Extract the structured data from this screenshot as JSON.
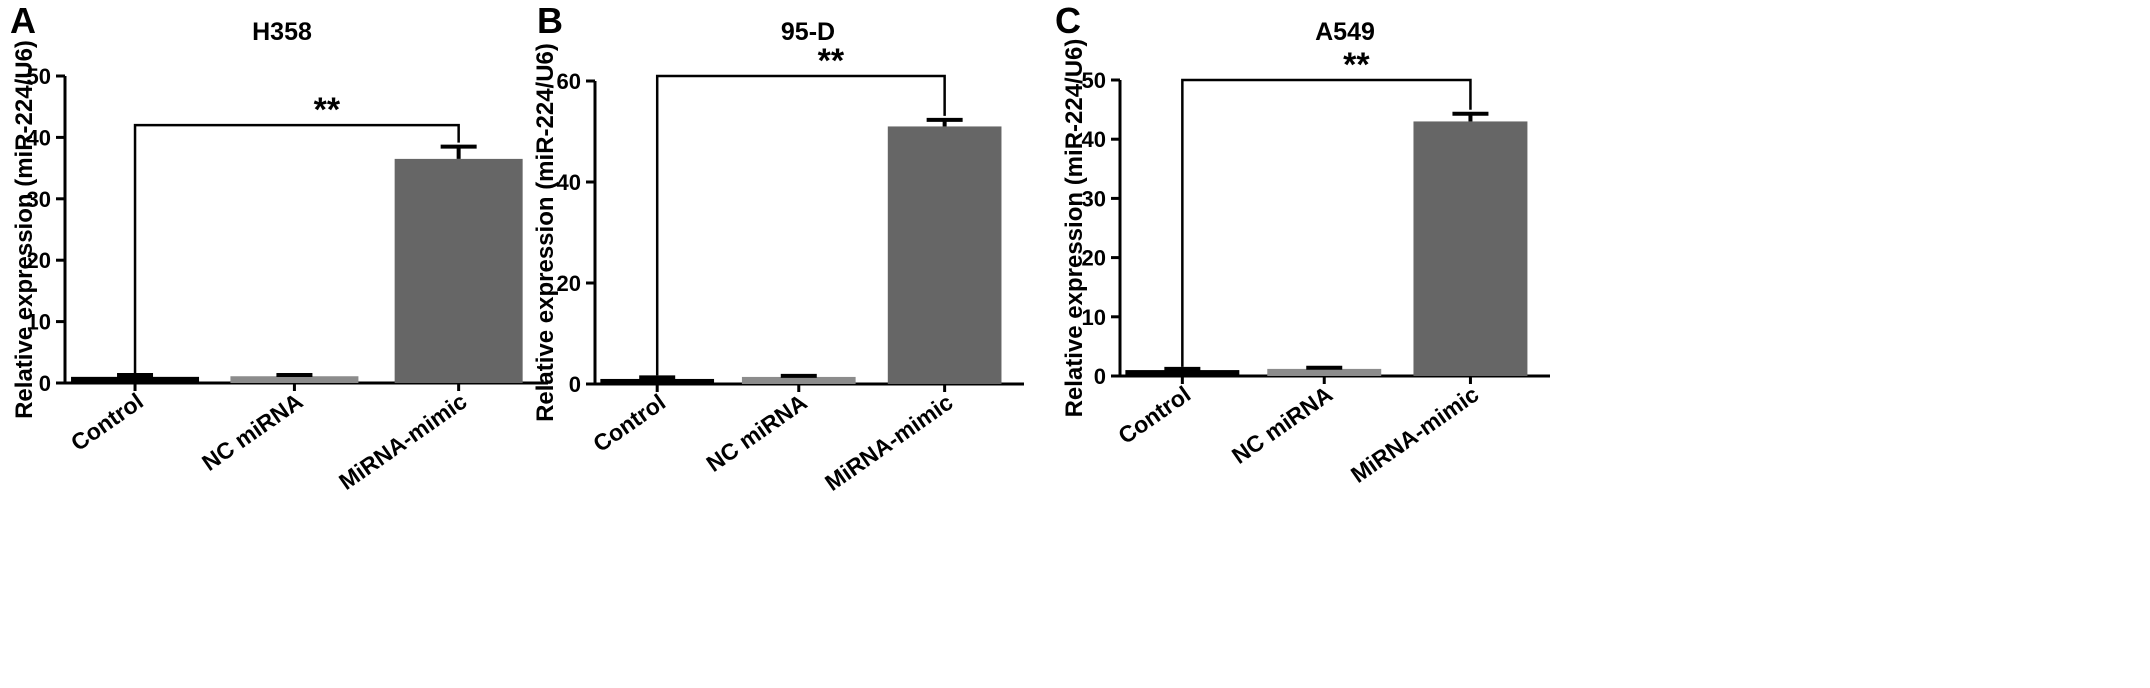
{
  "chart_data": [
    {
      "type": "bar",
      "panel": "A",
      "title": "H358",
      "ylabel": "Relative expression (miR-224/U6)",
      "xlabel": "",
      "categories": [
        "Control",
        "NC miRNA",
        "MiRNA-mimic"
      ],
      "values": [
        1.0,
        1.1,
        36.5
      ],
      "errors": [
        0.3,
        0.2,
        2.0
      ],
      "bar_colors": [
        "#000000",
        "#8c8c8c",
        "#666666"
      ],
      "ylim": [
        0,
        50
      ],
      "yticks": [
        0,
        10,
        20,
        30,
        40,
        50
      ],
      "significance": {
        "from": 0,
        "to": 2,
        "label": "**",
        "y": 42
      },
      "grid": false
    },
    {
      "type": "bar",
      "panel": "B",
      "title": "95-D",
      "ylabel": "Relative expression (miR-224/U6)",
      "xlabel": "",
      "categories": [
        "Control",
        "NC miRNA",
        "MiRNA-mimic"
      ],
      "values": [
        1.0,
        1.4,
        51.0
      ],
      "errors": [
        0.3,
        0.2,
        1.3
      ],
      "bar_colors": [
        "#000000",
        "#8c8c8c",
        "#666666"
      ],
      "ylim": [
        0,
        60
      ],
      "yticks": [
        0,
        20,
        40,
        60
      ],
      "significance": {
        "from": 0,
        "to": 2,
        "label": "**",
        "y": 61
      },
      "grid": false
    },
    {
      "type": "bar",
      "panel": "C",
      "title": "A549",
      "ylabel": "Relative expression (miR-224/U6)",
      "xlabel": "",
      "categories": [
        "Control",
        "NC miRNA",
        "MiRNA-mimic"
      ],
      "values": [
        1.0,
        1.2,
        43.0
      ],
      "errors": [
        0.2,
        0.2,
        1.3
      ],
      "bar_colors": [
        "#000000",
        "#8c8c8c",
        "#666666"
      ],
      "ylim": [
        0,
        50
      ],
      "yticks": [
        0,
        10,
        20,
        30,
        40,
        50
      ],
      "significance": {
        "from": 0,
        "to": 2,
        "label": "**",
        "y": 50
      },
      "grid": false
    }
  ]
}
